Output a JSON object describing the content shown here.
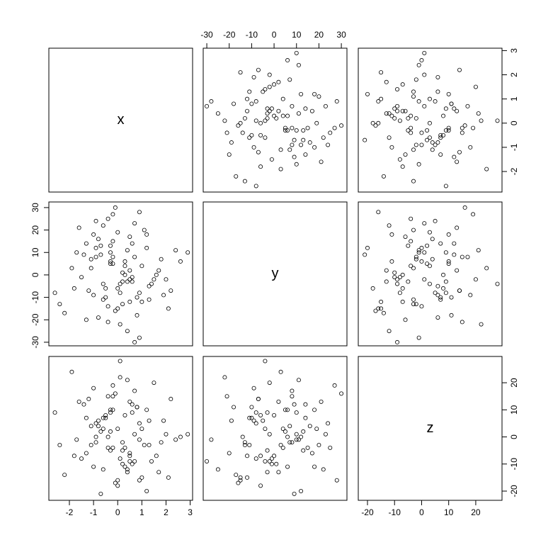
{
  "chart_data": {
    "type": "pairs",
    "point_color": "#000000",
    "variables": [
      {
        "name": "x",
        "lim": [
          -2.85,
          3.1
        ],
        "ticks": [
          -2,
          -1,
          0,
          1,
          2,
          3
        ],
        "values": [
          -0.3,
          0.5,
          1.2,
          -1.1,
          0.1,
          -0.6,
          0.9,
          -1.7,
          0.3,
          2.1,
          -0.2,
          0.7,
          -0.9,
          1.5,
          -0.4,
          0.0,
          -2.6,
          0.6,
          -1.3,
          1.0,
          0.2,
          -0.5,
          1.8,
          -0.1,
          0.4,
          -0.8,
          2.9,
          -1.5,
          0.8,
          -0.7,
          1.3,
          -0.3,
          0.1,
          -2.2,
          0.5,
          1.1,
          -1.0,
          0.3,
          -0.4,
          2.4,
          -0.2,
          0.6,
          -1.2,
          0.9,
          -0.6,
          1.6,
          0.0,
          -1.9,
          0.4,
          -0.3,
          1.4,
          -0.9,
          0.2,
          0.7,
          -0.1,
          2.0,
          -1.4,
          0.5,
          -0.5,
          1.2,
          -0.8,
          0.3,
          -2.4,
          0.8,
          1.7,
          -0.2,
          0.1,
          -1.1,
          0.6,
          -0.4,
          2.6,
          -0.7,
          1.0,
          -1.6,
          0.2,
          -0.3,
          0.9,
          -1.0,
          1.9,
          -0.6,
          0.4,
          -1.8,
          0.7,
          0.0,
          -0.2,
          1.3,
          -1.3,
          0.5,
          2.2,
          -0.9
        ]
      },
      {
        "name": "y",
        "lim": [
          -31.6,
          32.5
        ],
        "ticks": [
          -30,
          -20,
          -10,
          0,
          10,
          20,
          30
        ],
        "values": [
          5,
          -12,
          18,
          3,
          -4,
          22,
          -8,
          10,
          0,
          -15,
          8,
          -30,
          12,
          -2,
          25,
          -6,
          -8,
          14,
          -20,
          4,
          1,
          -10,
          7,
          30,
          -3,
          16,
          10,
          -1,
          -18,
          9,
          -5,
          13,
          -22,
          -17,
          2,
          20,
          -9,
          6,
          -14,
          11,
          15,
          -3,
          -7,
          28,
          -11,
          0,
          19,
          3,
          -25,
          6,
          -4,
          24,
          -13,
          8,
          -16,
          -2,
          9,
          17,
          -6,
          12,
          -19,
          4,
          -13,
          -10,
          2,
          27,
          -8,
          7,
          -1,
          -21,
          6,
          13,
          -12,
          21,
          -3,
          10,
          -28,
          18,
          -9,
          -4,
          11,
          -6,
          23,
          -15,
          5,
          -11,
          14,
          -2,
          -7,
          8
        ]
      },
      {
        "name": "z",
        "lim": [
          -23.4,
          29.7
        ],
        "ticks": [
          -20,
          -10,
          0,
          10,
          20
        ],
        "values": [
          2,
          -7,
          10,
          -3,
          28,
          -12,
          5,
          -1,
          8,
          -15,
          15,
          -9,
          0,
          20,
          -4,
          -18,
          9,
          12,
          -6,
          3,
          -10,
          7,
          -2,
          16,
          -13,
          4,
          1,
          -8,
          11,
          -21,
          6,
          -5,
          22,
          -14,
          13,
          -3,
          18,
          -11,
          0,
          -1,
          -4,
          9,
          14,
          -16,
          7,
          -7,
          3,
          24,
          -12,
          10,
          -9,
          5,
          -2,
          17,
          -17,
          1,
          12,
          -6,
          8,
          -20,
          6,
          -4,
          -3,
          11,
          -13,
          19,
          -8,
          4,
          -10,
          15,
          0,
          2,
          -15,
          13,
          -5,
          9,
          -1,
          -11,
          6,
          3,
          21,
          -7,
          1,
          -16,
          10,
          -3,
          7,
          -9,
          14,
          -2
        ]
      }
    ]
  }
}
